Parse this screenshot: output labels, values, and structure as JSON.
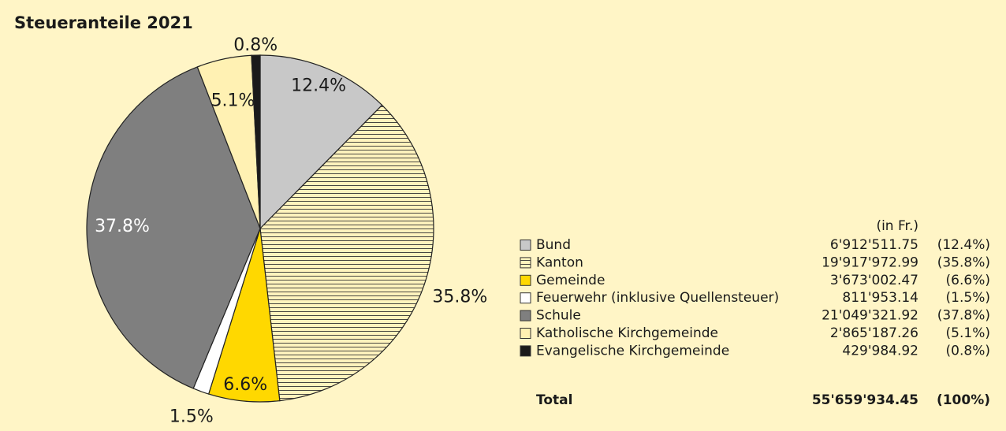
{
  "chart_data": {
    "type": "pie",
    "title": "Steueranteile 2021",
    "categories": [
      "Bund",
      "Kanton",
      "Gemeinde",
      "Feuerwehr (inklusive Quellensteuer)",
      "Schule",
      "Katholische Kirchgemeinde",
      "Evangelische Kirchgemeinde"
    ],
    "values": [
      12.4,
      35.8,
      6.6,
      1.5,
      37.8,
      5.1,
      0.8
    ],
    "value_labels": [
      "12.4%",
      "35.8%",
      "6.6%",
      "1.5%",
      "37.8%",
      "5.1%",
      "0.8%"
    ],
    "colors": [
      "#c8c8c8",
      "#fff3bd",
      "#ffd800",
      "#ffffff",
      "#7f7f7f",
      "#fff1b3",
      "#1a1a1a"
    ],
    "hatch": [
      false,
      true,
      false,
      false,
      false,
      false,
      false
    ],
    "table": {
      "unit_header": "(in Fr.)",
      "amounts": [
        "6'912'511.75",
        "19'917'972.99",
        "3'673'002.47",
        "811'953.14",
        "21'049'321.92",
        "2'865'187.26",
        "429'984.92"
      ],
      "percent_labels": [
        "(12.4%)",
        "(35.8%)",
        "(6.6%)",
        "(1.5%)",
        "(37.8%)",
        "(5.1%)",
        "(0.8%)"
      ],
      "total_label": "Total",
      "total_amount": "55'659'934.45",
      "total_percent": "(100%)"
    }
  }
}
